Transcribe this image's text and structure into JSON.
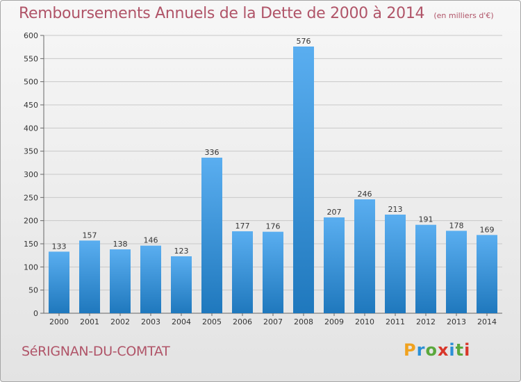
{
  "title": "Remboursements Annuels de la Dette de 2000 à 2014",
  "subtitle": "(en milliers d'€)",
  "city": "SéRIGNAN-DU-COMTAT",
  "logo": {
    "text": "Proxiti",
    "letters": [
      "P",
      "r",
      "o",
      "x",
      "i",
      "t",
      "i"
    ]
  },
  "colors": {
    "title": "#b05468",
    "bar_top": "#5aaef0",
    "bar_bottom": "#1f78bd",
    "grid": "#c8c8c8"
  },
  "chart_data": {
    "type": "bar",
    "title": "Remboursements Annuels de la Dette de 2000 à 2014",
    "subtitle": "(en milliers d'€)",
    "xlabel": "",
    "ylabel": "",
    "categories": [
      "2000",
      "2001",
      "2002",
      "2003",
      "2004",
      "2005",
      "2006",
      "2007",
      "2008",
      "2009",
      "2010",
      "2011",
      "2012",
      "2013",
      "2014"
    ],
    "values": [
      133,
      157,
      138,
      146,
      123,
      336,
      177,
      176,
      576,
      207,
      246,
      213,
      191,
      178,
      169
    ],
    "ylim": [
      0,
      600
    ],
    "yticks": [
      0,
      50,
      100,
      150,
      200,
      250,
      300,
      350,
      400,
      450,
      500,
      550,
      600
    ],
    "grid": true,
    "legend": "none"
  }
}
